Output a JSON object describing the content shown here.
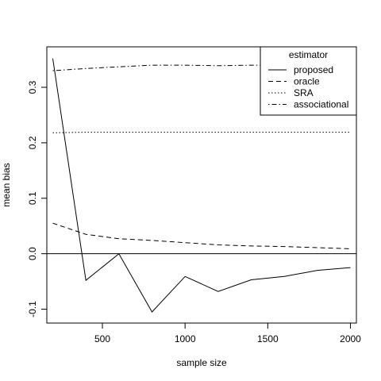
{
  "chart_data": {
    "type": "line",
    "title": "",
    "xlabel": "sample size",
    "ylabel": "mean bias",
    "xlim": [
      164,
      2036
    ],
    "ylim": [
      -0.125,
      0.373
    ],
    "xticks": [
      500,
      1000,
      1500,
      2000
    ],
    "xtick_labels": [
      "500",
      "1000",
      "1500",
      "2000"
    ],
    "yticks": [
      -0.1,
      0.0,
      0.1,
      0.2,
      0.3
    ],
    "ytick_labels": [
      "-0.1",
      "0.0",
      "0.1",
      "0.2",
      "0.3"
    ],
    "hline": 0,
    "grid": false,
    "legend": {
      "title": "estimator",
      "position": "top-right"
    },
    "x": [
      200,
      400,
      600,
      800,
      1000,
      1200,
      1400,
      1600,
      1800,
      2000
    ],
    "series": [
      {
        "name": "proposed",
        "dash": "solid",
        "values": [
          0.352,
          -0.048,
          0.0,
          -0.105,
          -0.041,
          -0.068,
          -0.047,
          -0.041,
          -0.03,
          -0.025
        ]
      },
      {
        "name": "oracle",
        "dash": "dashed",
        "values": [
          0.055,
          0.035,
          0.027,
          0.024,
          0.02,
          0.016,
          0.014,
          0.013,
          0.011,
          0.009
        ]
      },
      {
        "name": "SRA",
        "dash": "dotted",
        "values": [
          0.218,
          0.219,
          0.219,
          0.219,
          0.219,
          0.219,
          0.219,
          0.219,
          0.219,
          0.219
        ]
      },
      {
        "name": "associational",
        "dash": "dotdash",
        "values": [
          0.33,
          0.334,
          0.337,
          0.34,
          0.34,
          0.339,
          0.34,
          0.34,
          0.34,
          0.341
        ]
      }
    ]
  }
}
